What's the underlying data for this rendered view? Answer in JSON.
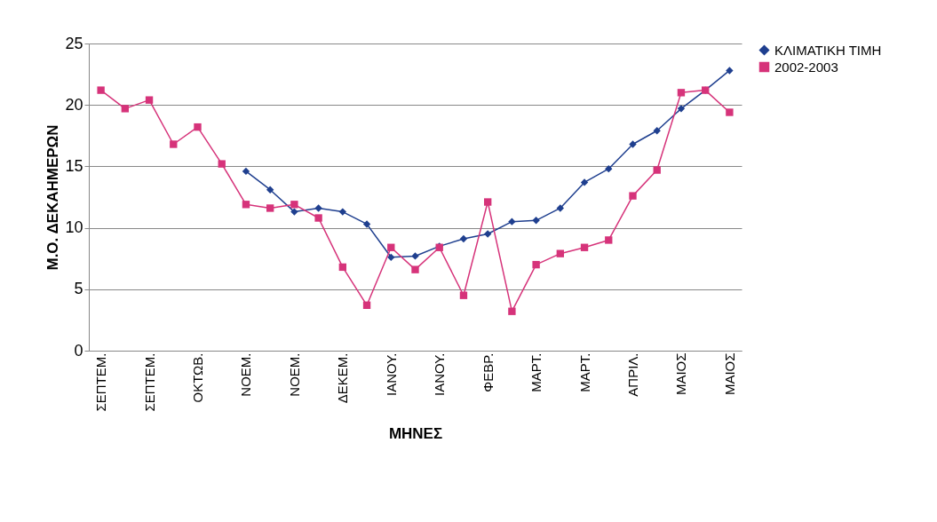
{
  "chart_data": {
    "type": "line",
    "xlabel": "ΜΗΝΕΣ",
    "ylabel": "Μ.Ο. ΔΕΚΑΗΜΕΡΩΝ",
    "categories": [
      "ΣΕΠΤΕΜ.",
      null,
      "ΣΕΠΤΕΜ.",
      null,
      "ΟΚΤΩΒ.",
      null,
      "ΝΟΕΜ.",
      null,
      "ΝΟΕΜ.",
      null,
      "ΔΕΚΕΜ.",
      null,
      "ΙΑΝΟΥ.",
      null,
      "ΙΑΝΟΥ.",
      null,
      "ΦΕΒΡ.",
      null,
      "ΜΑΡΤ.",
      null,
      "ΜΑΡΤ.",
      null,
      "ΑΠΡΙΛ.",
      null,
      "ΜΑΙΟΣ",
      null,
      "ΜΑΙΟΣ"
    ],
    "series": [
      {
        "name": "ΚΛΙΜΑΤΙΚΗ ΤΙΜΗ",
        "color": "#1f3f8f",
        "marker": "diamond",
        "values": [
          null,
          null,
          null,
          null,
          null,
          null,
          14.6,
          13.1,
          11.3,
          11.6,
          11.3,
          10.3,
          7.6,
          7.7,
          8.5,
          9.1,
          9.5,
          10.5,
          10.6,
          11.6,
          13.7,
          14.8,
          16.8,
          17.9,
          19.7,
          21.2,
          22.8
        ]
      },
      {
        "name": "2002-2003",
        "color": "#d6337a",
        "marker": "square",
        "values": [
          21.2,
          19.7,
          20.4,
          16.8,
          18.2,
          15.2,
          11.9,
          11.6,
          11.9,
          10.8,
          6.8,
          3.7,
          8.4,
          6.6,
          8.4,
          4.5,
          12.1,
          3.2,
          7.0,
          7.9,
          8.4,
          9.0,
          12.6,
          14.7,
          21.0,
          21.2,
          19.4
        ]
      }
    ],
    "ylim": [
      0,
      25
    ],
    "yticks": [
      0,
      5,
      10,
      15,
      20,
      25
    ],
    "grid": "y",
    "legend": "right"
  }
}
